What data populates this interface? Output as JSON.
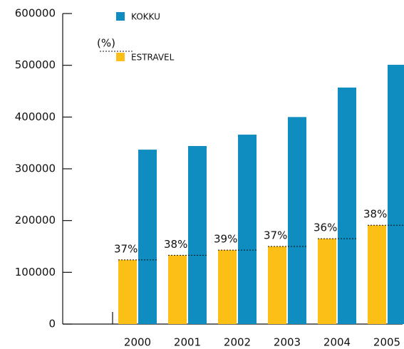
{
  "chart_data": {
    "type": "bar",
    "categories": [
      "2000",
      "2001",
      "2002",
      "2003",
      "2004",
      "2005"
    ],
    "series": [
      {
        "name": "ESTRAVEL",
        "color": "#fbbf16",
        "values": [
          124000,
          133000,
          143000,
          150000,
          165000,
          191000
        ]
      },
      {
        "name": "KOKKU",
        "color": "#0f8cc0",
        "values": [
          337000,
          344000,
          366000,
          400000,
          457000,
          501000
        ]
      }
    ],
    "shares": {
      "name": "(%)",
      "values": [
        37,
        38,
        39,
        37,
        36,
        38
      ],
      "value_labels": [
        "37%",
        "38%",
        "39%",
        "37%",
        "36%",
        "38%"
      ]
    },
    "ylim": [
      0,
      600000
    ],
    "yticks": [
      0,
      100000,
      200000,
      300000,
      400000,
      500000,
      600000
    ]
  }
}
